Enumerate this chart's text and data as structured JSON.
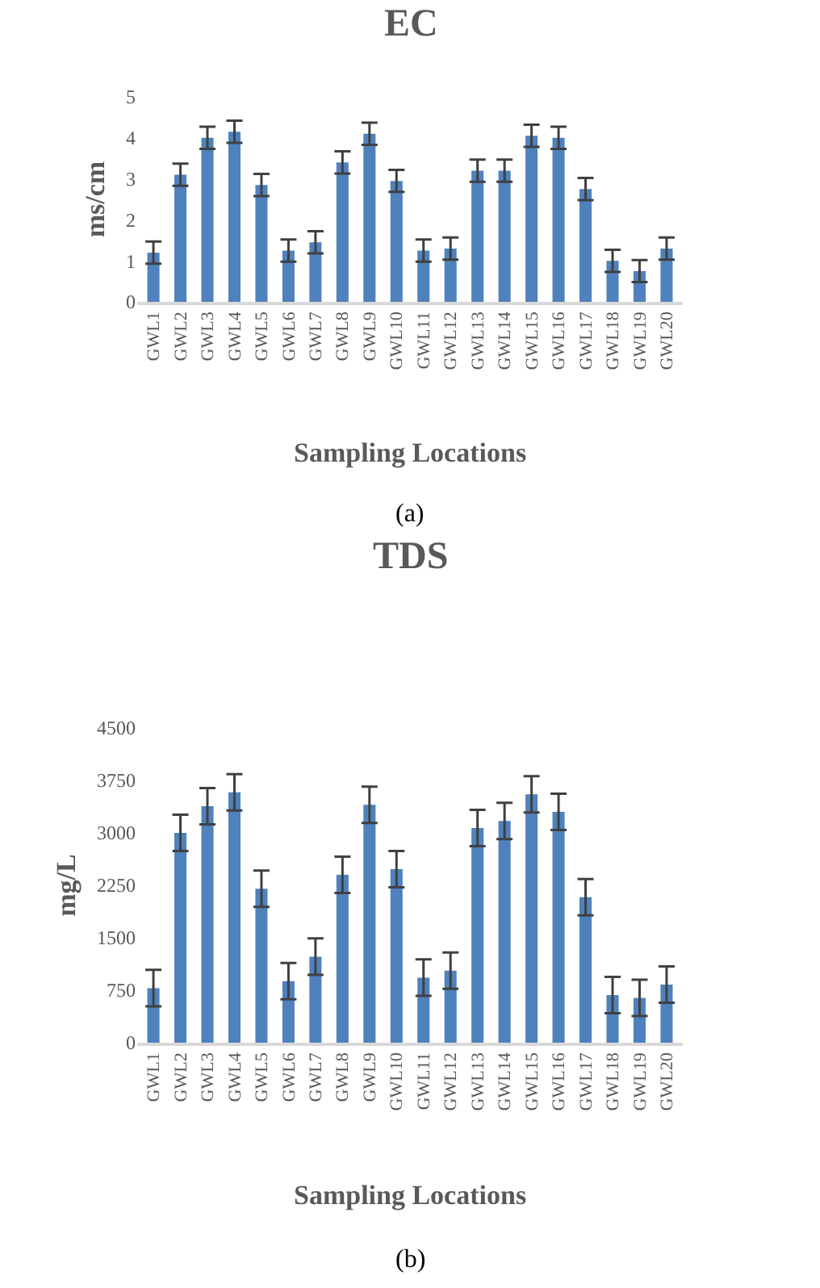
{
  "chart_data": [
    {
      "type": "bar",
      "title": "EC",
      "xlabel": "Sampling Locations",
      "ylabel": "ms/cm",
      "annotations": [
        "(a)"
      ],
      "color": "#4f81bd",
      "categories": [
        "GWL1",
        "GWL2",
        "GWL3",
        "GWL4",
        "GWL5",
        "GWL6",
        "GWL7",
        "GWL8",
        "GWL9",
        "GWL10",
        "GWL11",
        "GWL12",
        "GWL13",
        "GWL14",
        "GWL15",
        "GWL16",
        "GWL17",
        "GWL18",
        "GWL19",
        "GWL20"
      ],
      "values": [
        1.2,
        3.1,
        4.0,
        4.15,
        2.85,
        1.25,
        1.45,
        3.4,
        4.1,
        2.95,
        1.25,
        1.3,
        3.2,
        3.2,
        4.05,
        4.0,
        2.75,
        1.0,
        0.75,
        1.3
      ],
      "errors": [
        0.27,
        0.27,
        0.27,
        0.27,
        0.27,
        0.27,
        0.27,
        0.27,
        0.27,
        0.27,
        0.27,
        0.27,
        0.27,
        0.27,
        0.27,
        0.27,
        0.27,
        0.27,
        0.27,
        0.27
      ],
      "ylim": [
        0,
        5
      ],
      "yticks": [
        0,
        1,
        2,
        3,
        4,
        5
      ]
    },
    {
      "type": "bar",
      "title": "TDS",
      "xlabel": "Sampling Locations",
      "ylabel": "mg/L",
      "annotations": [
        "(b)"
      ],
      "color": "#4f81bd",
      "categories": [
        "GWL1",
        "GWL2",
        "GWL3",
        "GWL4",
        "GWL5",
        "GWL6",
        "GWL7",
        "GWL8",
        "GWL9",
        "GWL10",
        "GWL11",
        "GWL12",
        "GWL13",
        "GWL14",
        "GWL15",
        "GWL16",
        "GWL17",
        "GWL18",
        "GWL19",
        "GWL20"
      ],
      "values": [
        780,
        3000,
        3380,
        3580,
        2200,
        880,
        1230,
        2400,
        3400,
        2480,
        930,
        1030,
        3070,
        3170,
        3550,
        3300,
        2080,
        680,
        640,
        830
      ],
      "errors": [
        260,
        260,
        260,
        260,
        260,
        260,
        260,
        260,
        260,
        260,
        260,
        260,
        260,
        260,
        260,
        260,
        260,
        260,
        260,
        260
      ],
      "ylim": [
        0,
        4500
      ],
      "yticks": [
        0,
        750,
        1500,
        2250,
        3000,
        3750,
        4500
      ]
    }
  ]
}
